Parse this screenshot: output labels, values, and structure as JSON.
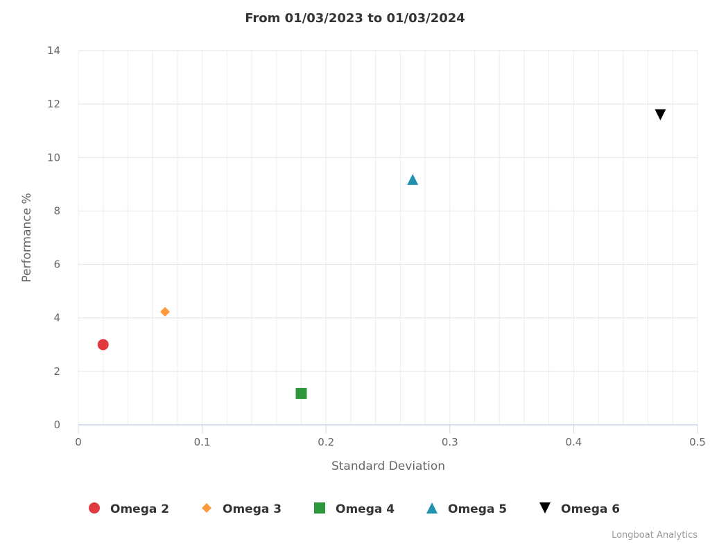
{
  "chart_data": {
    "type": "scatter",
    "title": "From 01/03/2023 to 01/03/2024",
    "xlabel": "Standard Deviation",
    "ylabel": "Performance %",
    "xlim": [
      0,
      0.5
    ],
    "ylim": [
      0,
      14
    ],
    "xticks": [
      "0",
      "0.1",
      "0.2",
      "0.3",
      "0.4",
      "0.5"
    ],
    "yticks": [
      "0",
      "2",
      "4",
      "6",
      "8",
      "10",
      "12",
      "14"
    ],
    "x_minor_step": 0.02,
    "grid": true,
    "legend_position": "bottom-center",
    "series": [
      {
        "name": "Omega 2",
        "symbol": "circle",
        "color": "#e0393e",
        "x": 0.02,
        "y": 3.0
      },
      {
        "name": "Omega 3",
        "symbol": "diamond",
        "color": "#ff9a3c",
        "x": 0.07,
        "y": 4.23
      },
      {
        "name": "Omega 4",
        "symbol": "square",
        "color": "#2e963c",
        "x": 0.18,
        "y": 1.17
      },
      {
        "name": "Omega 5",
        "symbol": "triangle",
        "color": "#2291b0",
        "x": 0.27,
        "y": 9.18
      },
      {
        "name": "Omega 6",
        "symbol": "triangle-down",
        "color": "#000000",
        "x": 0.47,
        "y": 11.6
      }
    ]
  },
  "credit": "Longboat Analytics"
}
